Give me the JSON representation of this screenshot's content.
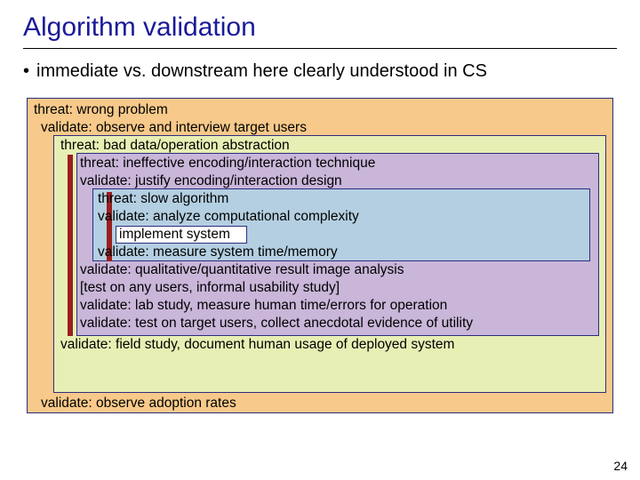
{
  "title": "Algorithm validation",
  "bullet": "immediate vs. downstream here clearly understood in CS",
  "page_number": "24",
  "diagram": {
    "boxes": {
      "outer": {
        "fill": "#f7c98a",
        "border": "#2d2d80"
      },
      "mid": {
        "fill": "#e8efb4",
        "border": "#2d2d80"
      },
      "inner": {
        "fill": "#c9b6d9",
        "border": "#2d2d80"
      },
      "core": {
        "fill": "#b4cfe1",
        "border": "#2d2d80"
      },
      "impl": {
        "fill": "#ffffff",
        "border": "#2d2d80"
      }
    },
    "bar_color": "#9a1f1f",
    "text_color": "#000000",
    "font_size_pt": 12,
    "lines": {
      "l1": "threat: wrong problem",
      "l2": "validate: observe and interview target users",
      "l3": "threat: bad data/operation abstraction",
      "l4": "threat: ineffective encoding/interaction technique",
      "l5": "validate: justify encoding/interaction design",
      "l6": "threat: slow algorithm",
      "l7": "validate: analyze computational complexity",
      "l8": "implement system",
      "l9": "validate: measure system time/memory",
      "l10": "validate: qualitative/quantitative result image analysis",
      "l11": "[test on any users, informal usability study]",
      "l12": "validate: lab study, measure human time/errors for operation",
      "l13": "validate: test on target users, collect anecdotal evidence of utility",
      "l14": "validate: field study, document human usage of deployed system",
      "l15": "",
      "l16": "",
      "l17": "validate: observe adoption rates"
    }
  }
}
